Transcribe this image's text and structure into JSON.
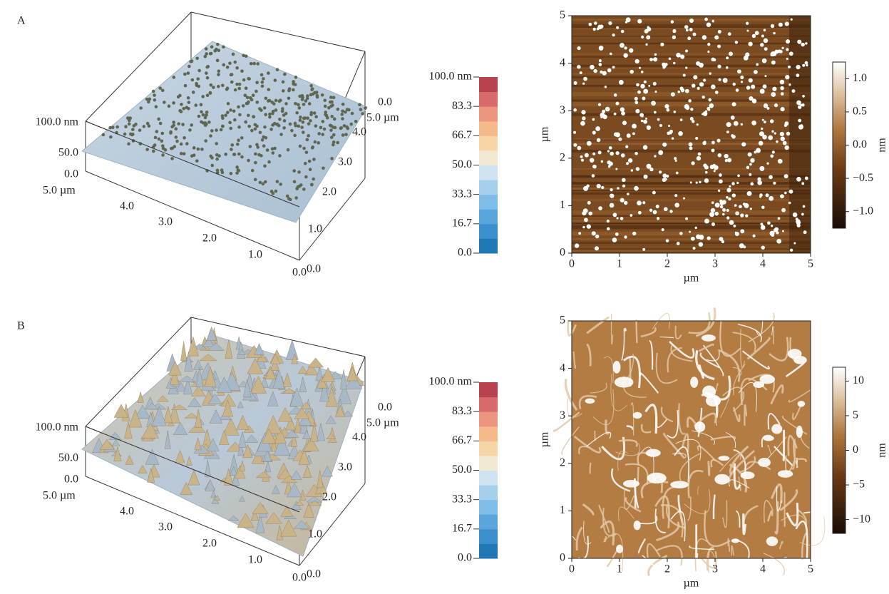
{
  "panels": [
    {
      "label": "A",
      "surface": {
        "z_ticks": [
          "100.0 nm",
          "50.0",
          "0.0"
        ],
        "x_ticks": [
          "5.0 µm",
          "4.0",
          "3.0",
          "2.0",
          "1.0",
          "0.0"
        ],
        "y_ticks": [
          "0.0",
          "1.0",
          "2.0",
          "3.0",
          "4.0",
          "5.0 µm",
          "0.0"
        ]
      },
      "scale": [
        "100.0 nm",
        "83.3",
        "66.7",
        "50.0",
        "33.3",
        "16.7",
        "0.0"
      ],
      "map": {
        "xlabel": "µm",
        "ylabel": "µm",
        "xlim": [
          0,
          5
        ],
        "ylim": [
          0,
          5
        ],
        "xticks": [
          0,
          1,
          2,
          3,
          4,
          5
        ],
        "yticks": [
          0,
          1,
          2,
          3,
          4,
          5
        ],
        "colorbar": {
          "label": "nm",
          "lim": [
            -1.25,
            1.25
          ],
          "ticks": [
            {
              "value": 1,
              "label": "1.0"
            },
            {
              "value": 0.5,
              "label": "0.5"
            },
            {
              "value": 0,
              "label": "0.0"
            },
            {
              "value": -0.5,
              "label": "−0.5"
            },
            {
              "value": -1,
              "label": "−1.0"
            }
          ]
        }
      }
    },
    {
      "label": "B",
      "surface": {
        "z_ticks": [
          "100.0 nm",
          "50.0",
          "0.0"
        ],
        "x_ticks": [
          "5.0 µm",
          "4.0",
          "3.0",
          "2.0",
          "1.0",
          "0.0"
        ],
        "y_ticks": [
          "0.0",
          "1.0",
          "2.0",
          "3.0",
          "4.0",
          "5.0 µm",
          "0.0"
        ]
      },
      "scale": [
        "100.0 nm",
        "83.3",
        "66.7",
        "50.0",
        "33.3",
        "16.7",
        "0.0"
      ],
      "map": {
        "xlabel": "µm",
        "ylabel": "µm",
        "xlim": [
          0,
          5
        ],
        "ylim": [
          0,
          5
        ],
        "xticks": [
          0,
          1,
          2,
          3,
          4,
          5
        ],
        "yticks": [
          0,
          1,
          2,
          3,
          4,
          5
        ],
        "colorbar": {
          "label": "nm",
          "lim": [
            -12,
            12
          ],
          "ticks": [
            10,
            5,
            0,
            {
              "value": -5,
              "label": "−5"
            },
            {
              "value": -10,
              "label": "−10"
            }
          ]
        }
      }
    }
  ]
}
